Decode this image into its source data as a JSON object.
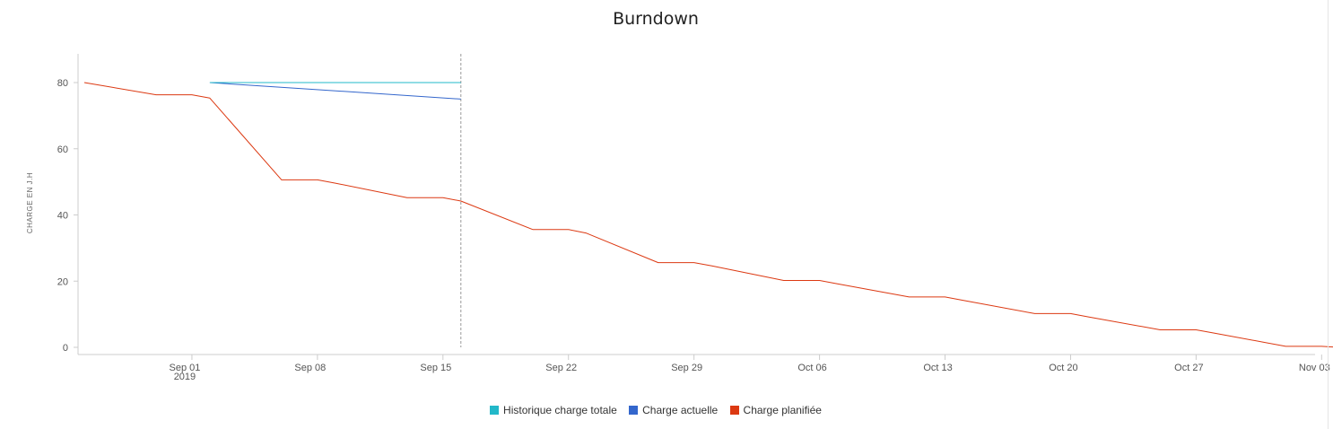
{
  "colors": {
    "historique": "#22b8c9",
    "actuelle": "#3366cc",
    "planifiee": "#dc3912",
    "axis": "#cccccc",
    "today_line": "#999999"
  },
  "chart_data": {
    "type": "line",
    "title": "Burndown",
    "ylabel": "CHARGE EN J.H",
    "xlabel": "",
    "ylim": [
      0,
      80
    ],
    "yticks": [
      0,
      20,
      40,
      60,
      80
    ],
    "xlim": [
      "2019-08-26",
      "2019-11-05"
    ],
    "xticks": [
      {
        "date": "2019-09-01",
        "label": "Sep 01",
        "sublabel": "2019"
      },
      {
        "date": "2019-09-08",
        "label": "Sep 08",
        "sublabel": ""
      },
      {
        "date": "2019-09-15",
        "label": "Sep 15",
        "sublabel": ""
      },
      {
        "date": "2019-09-22",
        "label": "Sep 22",
        "sublabel": ""
      },
      {
        "date": "2019-09-29",
        "label": "Sep 29",
        "sublabel": ""
      },
      {
        "date": "2019-10-06",
        "label": "Oct 06",
        "sublabel": ""
      },
      {
        "date": "2019-10-13",
        "label": "Oct 13",
        "sublabel": ""
      },
      {
        "date": "2019-10-20",
        "label": "Oct 20",
        "sublabel": ""
      },
      {
        "date": "2019-10-27",
        "label": "Oct 27",
        "sublabel": ""
      },
      {
        "date": "2019-11-03",
        "label": "Nov 03",
        "sublabel": ""
      }
    ],
    "today": "2019-09-16",
    "legend_position": "bottom",
    "grid": false,
    "series": [
      {
        "name": "Historique charge totale",
        "color_key": "historique",
        "points": [
          [
            "2019-09-02",
            80
          ],
          [
            "2019-09-16",
            80
          ]
        ]
      },
      {
        "name": "Charge actuelle",
        "color_key": "actuelle",
        "points": [
          [
            "2019-09-02",
            80
          ],
          [
            "2019-09-16",
            75
          ]
        ]
      },
      {
        "name": "Charge planifiée",
        "color_key": "planifiee",
        "points": [
          [
            "2019-08-26",
            80
          ],
          [
            "2019-08-30",
            76.3
          ],
          [
            "2019-09-01",
            76.3
          ],
          [
            "2019-09-02",
            75.3
          ],
          [
            "2019-09-06",
            50.6
          ],
          [
            "2019-09-08",
            50.6
          ],
          [
            "2019-09-09",
            49.6
          ],
          [
            "2019-09-13",
            45.2
          ],
          [
            "2019-09-15",
            45.2
          ],
          [
            "2019-09-16",
            44.2
          ],
          [
            "2019-09-20",
            35.6
          ],
          [
            "2019-09-22",
            35.6
          ],
          [
            "2019-09-23",
            34.5
          ],
          [
            "2019-09-27",
            25.6
          ],
          [
            "2019-09-29",
            25.6
          ],
          [
            "2019-09-30",
            24.6
          ],
          [
            "2019-10-04",
            20.2
          ],
          [
            "2019-10-06",
            20.2
          ],
          [
            "2019-10-07",
            19.2
          ],
          [
            "2019-10-11",
            15.2
          ],
          [
            "2019-10-13",
            15.2
          ],
          [
            "2019-10-14",
            14.2
          ],
          [
            "2019-10-18",
            10.2
          ],
          [
            "2019-10-20",
            10.2
          ],
          [
            "2019-10-21",
            9.2
          ],
          [
            "2019-10-25",
            5.3
          ],
          [
            "2019-10-27",
            5.3
          ],
          [
            "2019-10-28",
            4.3
          ],
          [
            "2019-11-01",
            0.3
          ],
          [
            "2019-11-03",
            0.3
          ],
          [
            "2019-11-04",
            0
          ]
        ]
      }
    ]
  }
}
